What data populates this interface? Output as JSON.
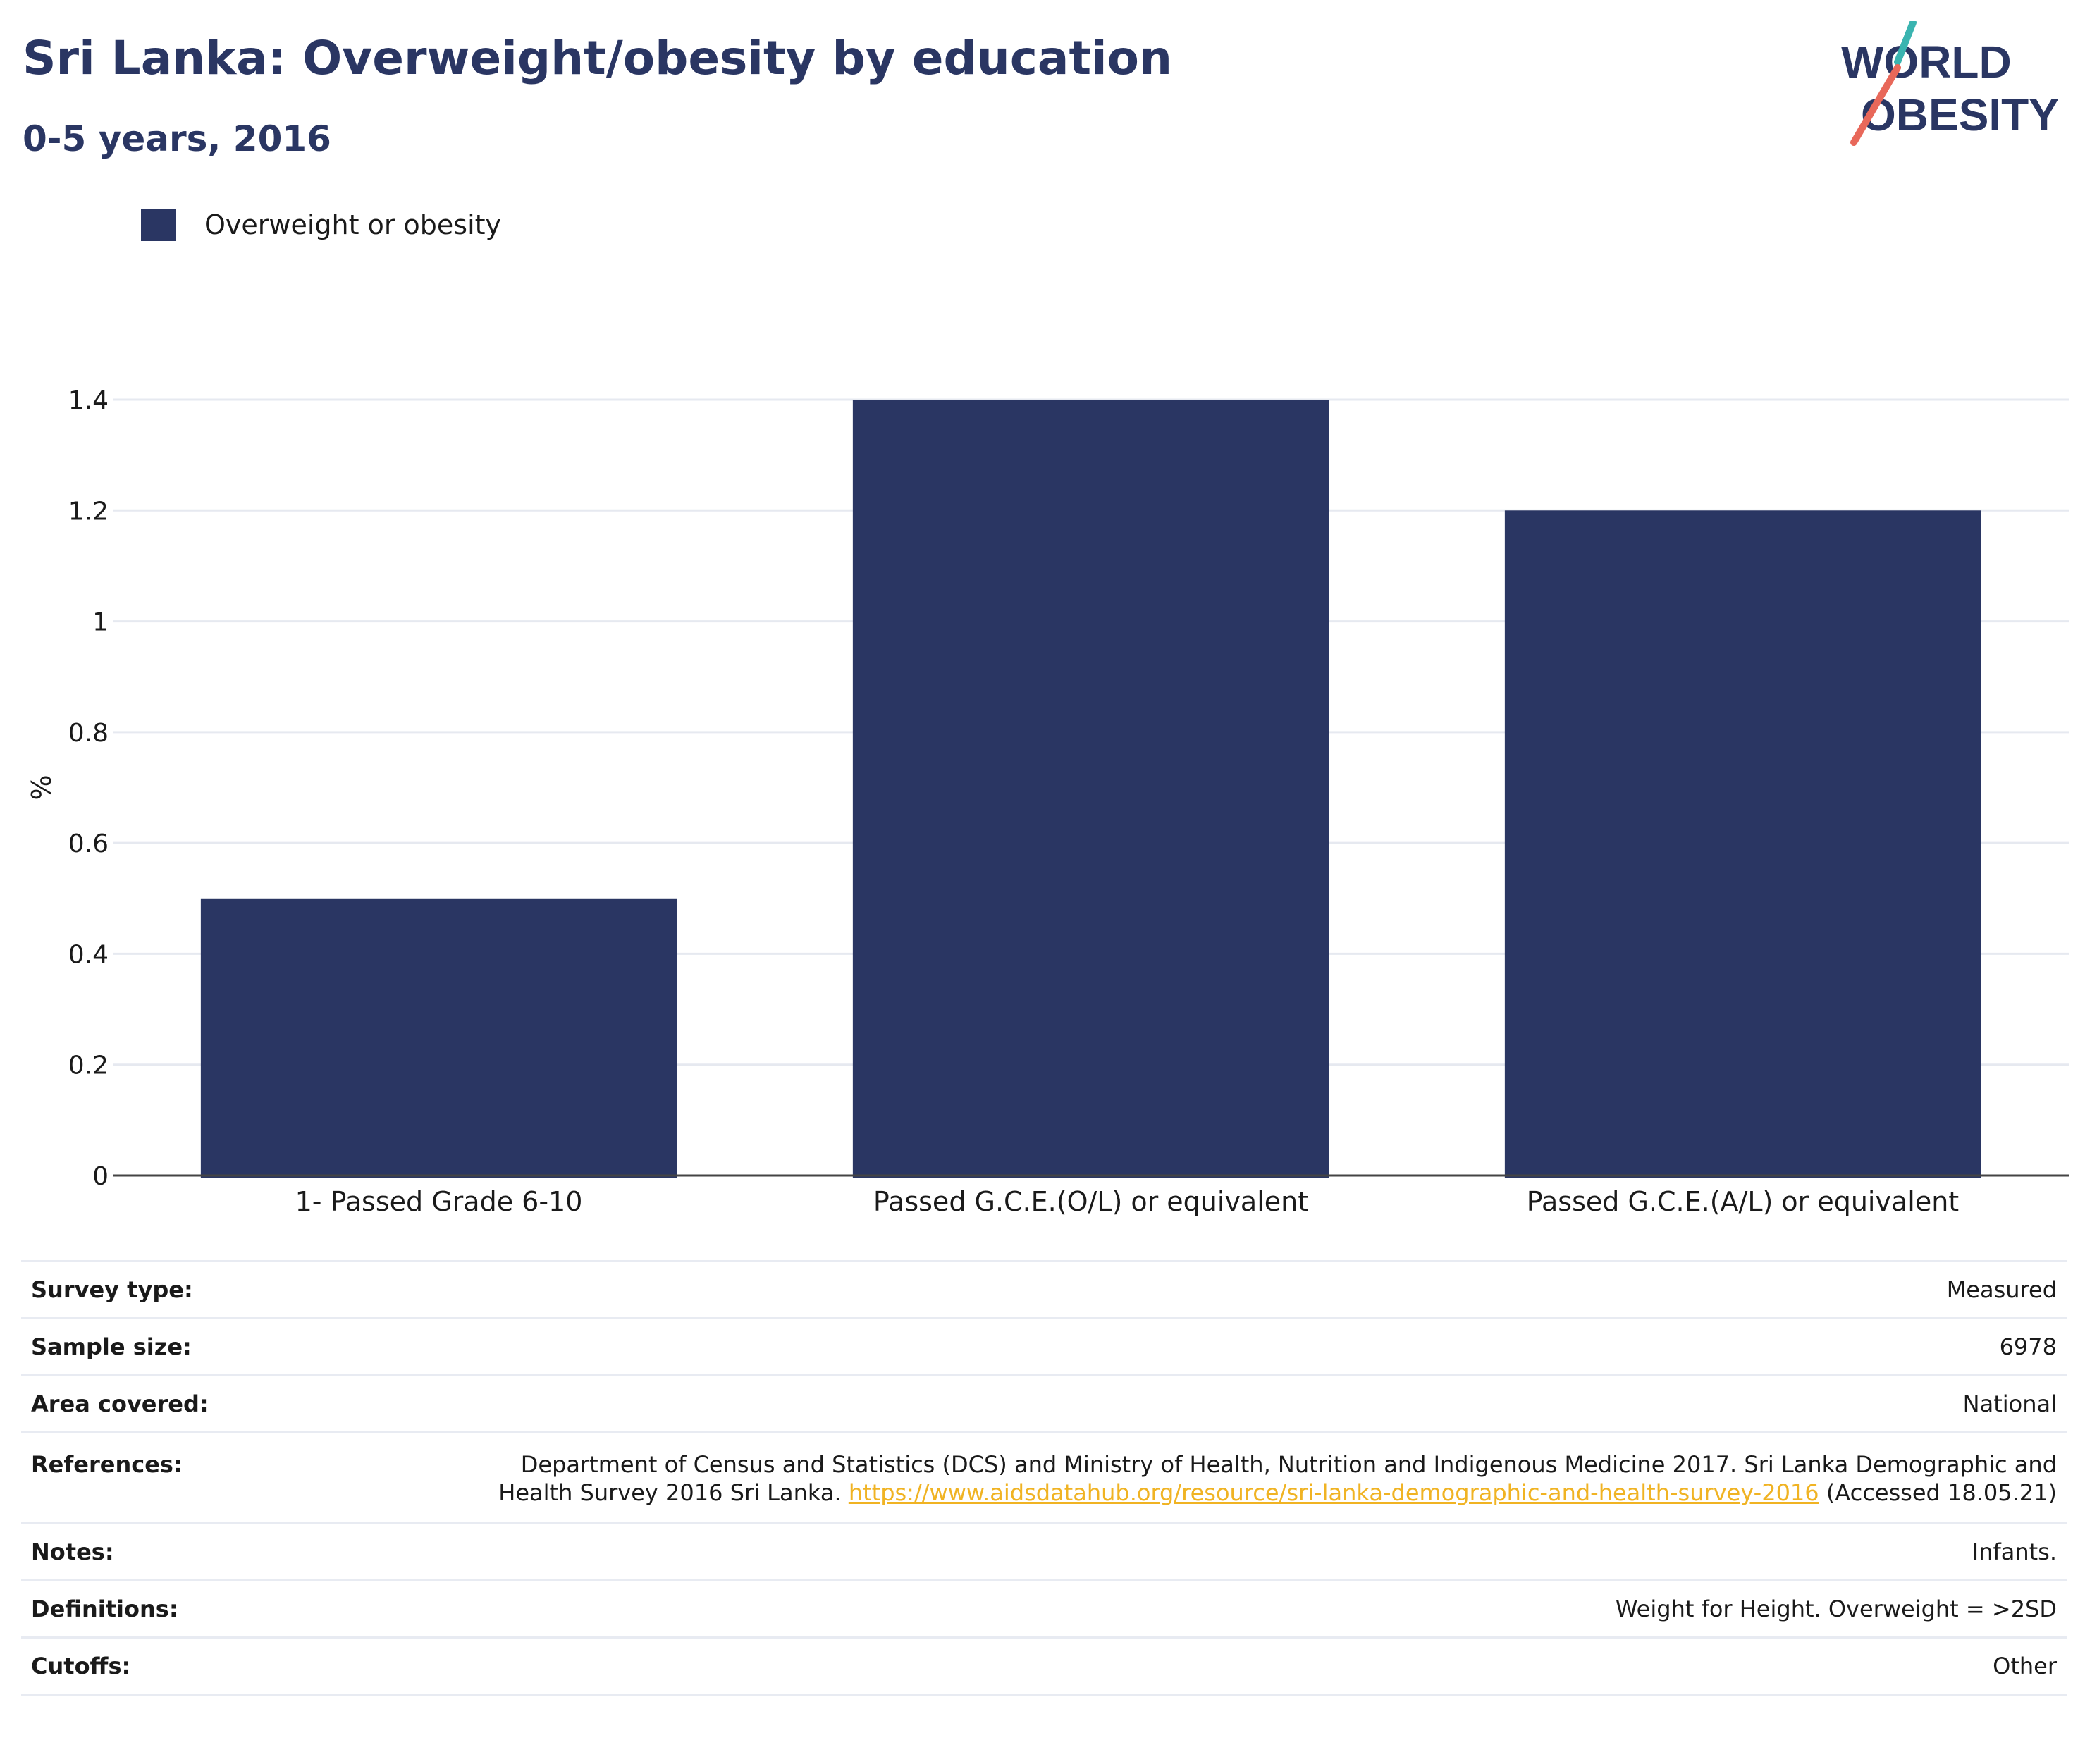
{
  "header": {
    "title": "Sri Lanka: Overweight/obesity by education",
    "subtitle": "0-5 years, 2016"
  },
  "logo": {
    "line1": "WORLD",
    "line2": "OBESITY"
  },
  "colors": {
    "bar": "#2a3663",
    "title": "#2a3663",
    "link": "#f0b323",
    "grid": "#e6e9f0"
  },
  "chart_data": {
    "type": "bar",
    "categories": [
      "1- Passed Grade 6-10",
      "Passed G.C.E.(O/L) or equivalent",
      "Passed G.C.E.(A/L) or equivalent"
    ],
    "series": [
      {
        "name": "Overweight or obesity",
        "values": [
          0.5,
          1.4,
          1.2
        ]
      }
    ],
    "ylabel": "%",
    "ylim": [
      0,
      1.4
    ],
    "yticks": [
      "0",
      "0.2",
      "0.4",
      "0.6",
      "0.8",
      "1",
      "1.2",
      "1.4"
    ],
    "grid": true,
    "legend": "top-left"
  },
  "meta": {
    "survey_type": {
      "label": "Survey type:",
      "value": "Measured"
    },
    "sample_size": {
      "label": "Sample size:",
      "value": "6978"
    },
    "area": {
      "label": "Area covered:",
      "value": "National"
    },
    "references": {
      "label": "References:",
      "text_before": "Department of Census and Statistics (DCS) and Ministry of Health, Nutrition and Indigenous Medicine 2017. Sri Lanka Demographic and Health Survey 2016 Sri Lanka. ",
      "link": "https://www.aidsdatahub.org/resource/sri-lanka-demographic-and-health-survey-2016",
      "text_after": " (Accessed 18.05.21)"
    },
    "notes": {
      "label": "Notes:",
      "value": "Infants."
    },
    "definitions": {
      "label": "Definitions:",
      "value": "Weight for Height. Overweight = >2SD"
    },
    "cutoffs": {
      "label": "Cutoffs:",
      "value": "Other"
    }
  }
}
